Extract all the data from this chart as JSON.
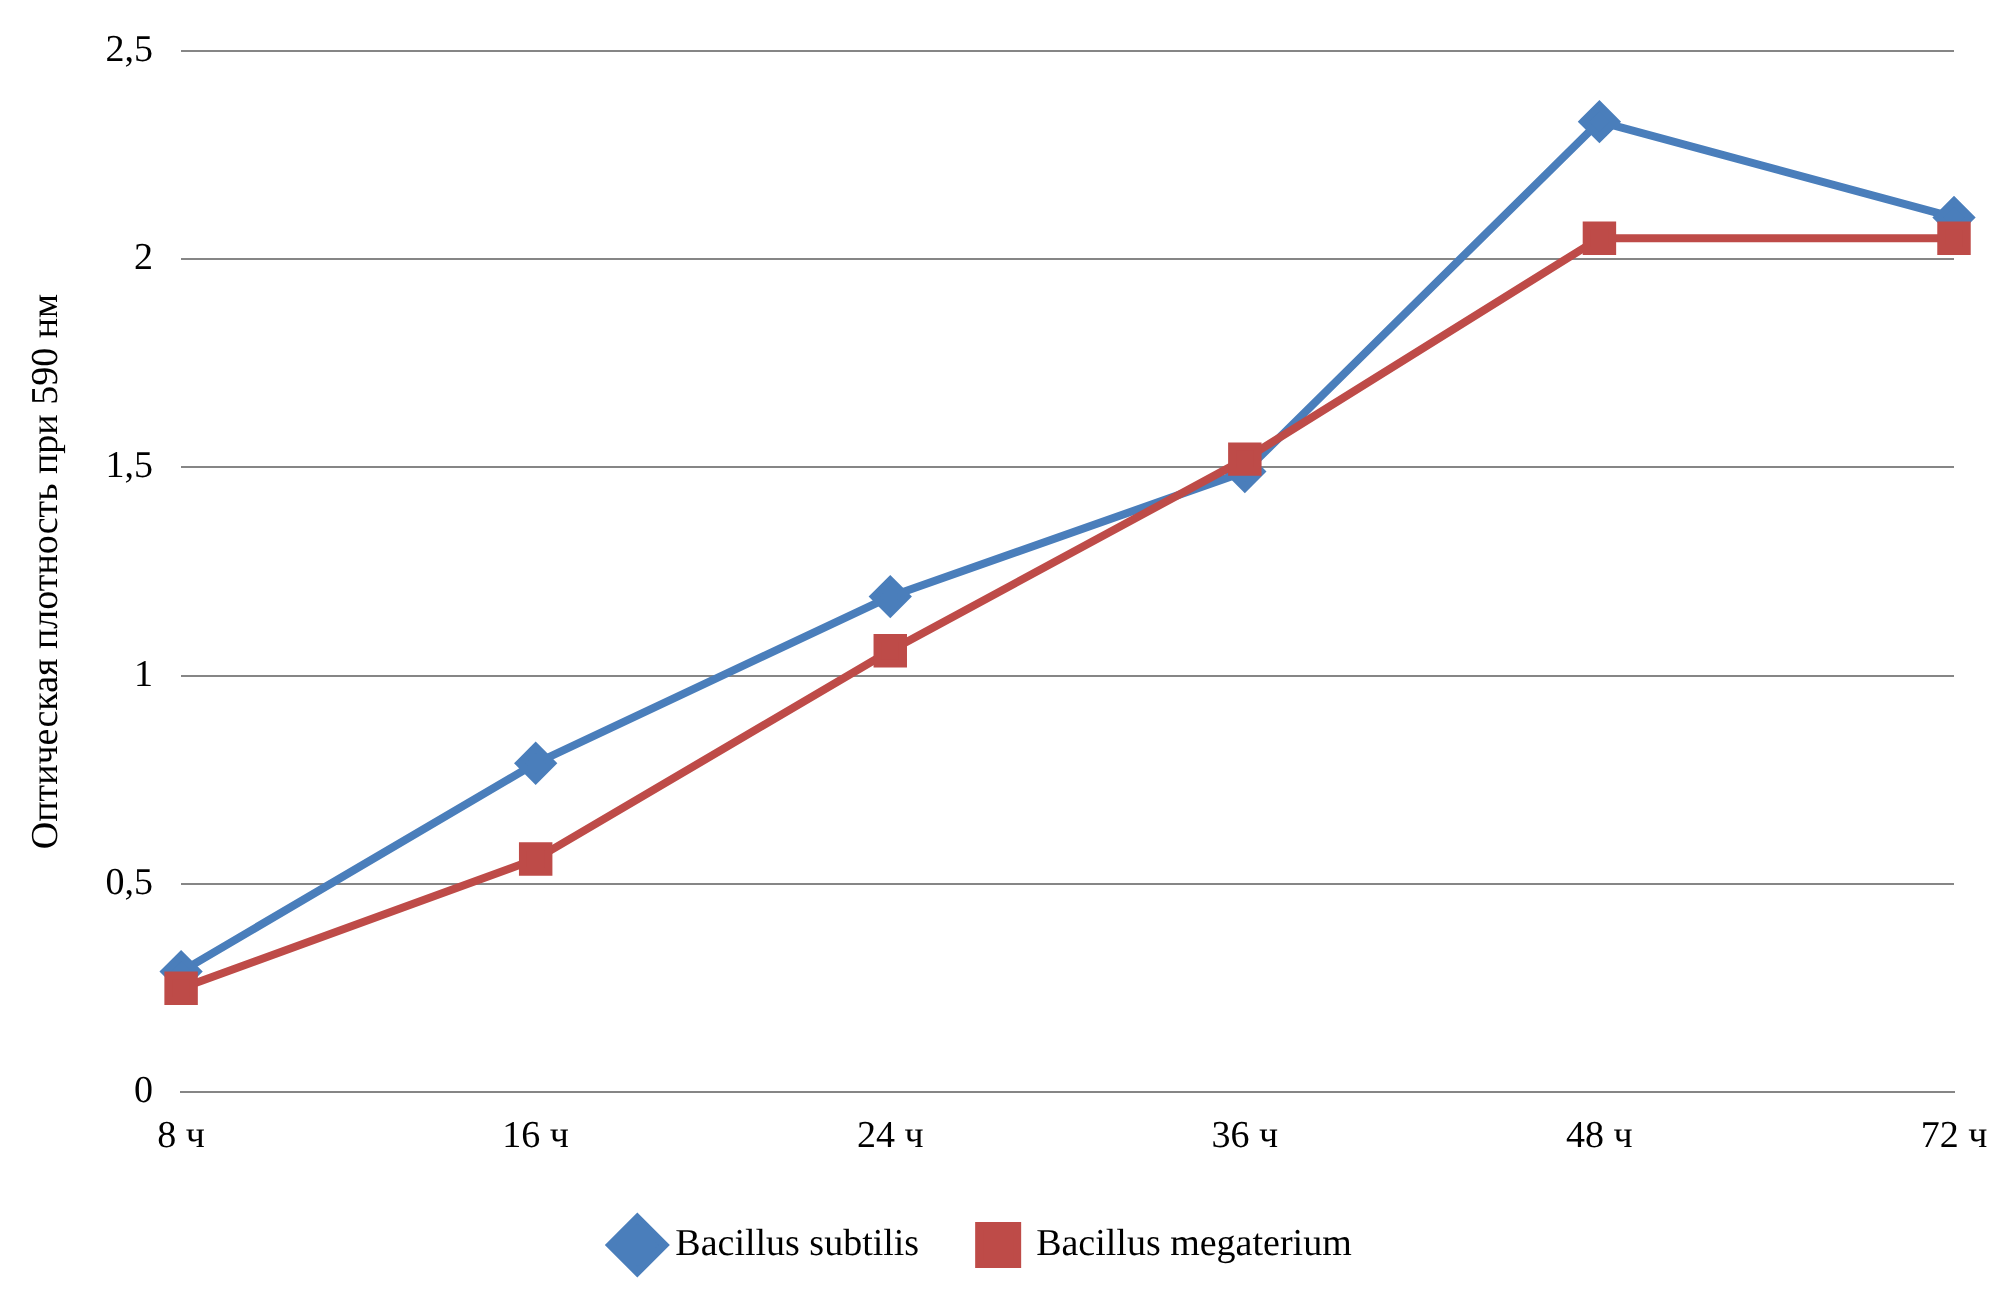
{
  "chart_data": {
    "type": "line",
    "ylabel": "Оптическая плотность при 590 нм",
    "categories": [
      "8 ч",
      "16 ч",
      "24 ч",
      "36 ч",
      "48 ч",
      "72 ч"
    ],
    "series": [
      {
        "name": "Bacillus subtilis",
        "color": "#4a7ebb",
        "marker": "diamond",
        "values": [
          0.29,
          0.79,
          1.19,
          1.49,
          2.33,
          2.1
        ]
      },
      {
        "name": "Bacillus megaterium",
        "color": "#be4b48",
        "marker": "square",
        "values": [
          0.25,
          0.56,
          1.06,
          1.52,
          2.05,
          2.05
        ]
      }
    ],
    "ylim": [
      0,
      2.5
    ],
    "yticks": [
      0,
      {
        "value": 0.5,
        "label": "0,5"
      },
      1,
      {
        "value": 1.5,
        "label": "1,5"
      },
      2,
      {
        "value": 2.5,
        "label": "2,5"
      }
    ],
    "grid": "y",
    "legend": "bottom",
    "line_style": "solid"
  }
}
